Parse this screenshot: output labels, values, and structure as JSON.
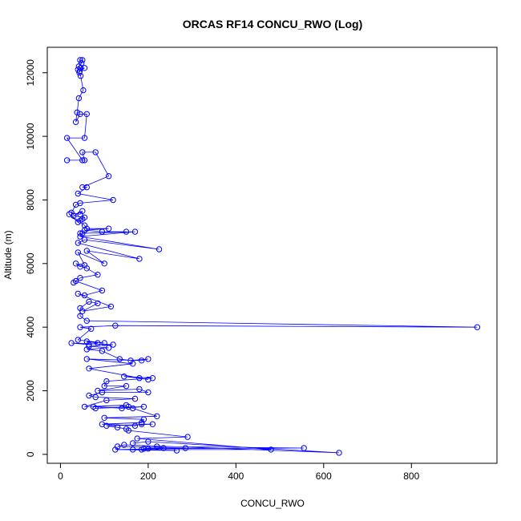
{
  "chart_data": {
    "type": "line",
    "title": "ORCAS RF14 CONCU_RWO (Log)",
    "xlabel": "CONCU_RWO",
    "ylabel": "Altitude (m)",
    "xlim": [
      -30,
      995
    ],
    "ylim": [
      -280,
      12800
    ],
    "xticks": [
      0,
      200,
      400,
      600,
      800
    ],
    "yticks": [
      0,
      2000,
      4000,
      6000,
      8000,
      10000,
      12000
    ],
    "grid": false,
    "series": [
      {
        "name": "",
        "color": "#0000ff",
        "marker": "open-circle",
        "x": [
          45,
          50,
          48,
          42,
          46,
          40,
          55,
          44,
          43,
          46,
          52,
          42,
          38,
          35,
          45,
          60,
          55,
          15,
          50,
          15,
          55,
          50,
          80,
          110,
          50,
          60,
          40,
          120,
          45,
          35,
          25,
          45,
          50,
          30,
          55,
          50,
          45,
          40,
          20,
          55,
          60,
          110,
          55,
          95,
          150,
          50,
          45,
          170,
          45,
          225,
          55,
          40,
          180,
          60,
          100,
          40,
          55,
          45,
          35,
          60,
          85,
          45,
          30,
          35,
          95,
          55,
          40,
          115,
          50,
          85,
          65,
          45,
          45,
          60,
          950,
          125,
          45,
          70,
          40,
          100,
          60,
          85,
          65,
          25,
          120,
          65,
          110,
          60,
          95,
          135,
          160,
          200,
          185,
          60,
          165,
          65,
          200,
          180,
          145,
          210,
          105,
          100,
          150,
          85,
          180,
          200,
          95,
          65,
          80,
          170,
          105,
          55,
          150,
          75,
          140,
          190,
          80,
          155,
          165,
          220,
          100,
          190,
          185,
          95,
          170,
          185,
          210,
          105,
          130,
          150,
          155,
          290,
          175,
          480,
          185,
          220,
          555,
          190,
          235,
          200,
          165,
          265,
          125,
          285,
          130,
          145,
          635,
          200,
          165
        ],
        "y": [
          12400,
          12400,
          12300,
          12200,
          12150,
          12100,
          12150,
          12050,
          12000,
          11900,
          11450,
          11200,
          10750,
          10450,
          10700,
          10700,
          9950,
          9950,
          9250,
          9250,
          9250,
          9500,
          9500,
          8750,
          8400,
          8400,
          8200,
          8000,
          7900,
          7850,
          7600,
          7550,
          7650,
          7500,
          7450,
          7400,
          7350,
          7300,
          7550,
          7200,
          7100,
          7100,
          7050,
          7000,
          7000,
          6950,
          6950,
          7000,
          6850,
          6450,
          6750,
          6650,
          6150,
          6400,
          6000,
          6350,
          5950,
          5900,
          6000,
          5850,
          5650,
          5550,
          5400,
          5450,
          5150,
          5000,
          5050,
          4650,
          4500,
          4750,
          4800,
          4600,
          4350,
          4200,
          4000,
          4050,
          4000,
          3950,
          3600,
          3500,
          3550,
          3500,
          3450,
          3500,
          3450,
          3400,
          3350,
          3300,
          3250,
          3000,
          2950,
          3000,
          2950,
          3000,
          2850,
          2700,
          2350,
          2400,
          2450,
          2400,
          2300,
          2150,
          2150,
          2000,
          2050,
          1950,
          1950,
          1850,
          1800,
          1750,
          1700,
          1500,
          1550,
          1500,
          1450,
          1500,
          1450,
          1500,
          1450,
          1200,
          1150,
          1100,
          1000,
          950,
          900,
          950,
          950,
          900,
          850,
          800,
          750,
          550,
          500,
          150,
          150,
          250,
          200,
          180,
          200,
          180,
          150,
          120,
          150,
          200,
          250,
          300,
          50,
          400,
          350
        ]
      }
    ]
  }
}
